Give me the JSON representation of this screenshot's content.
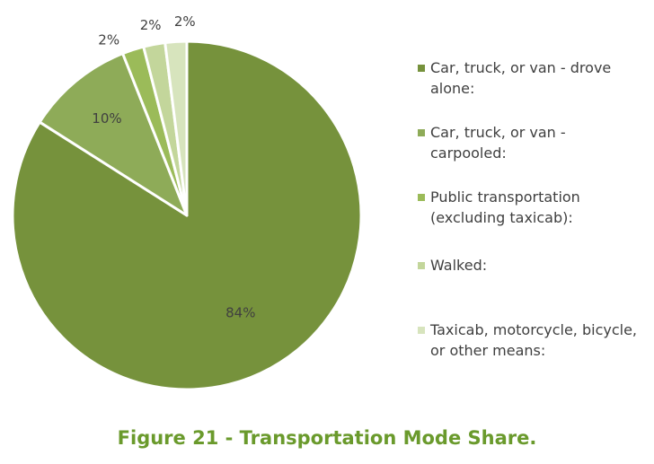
{
  "chart_data": {
    "type": "pie",
    "title": "",
    "categories": [
      "Car, truck, or van - drove alone:",
      "Car, truck, or van - carpooled:",
      "Public transportation (excluding taxicab):",
      "Walked:",
      "Taxicab, motorcycle, bicycle, or other means:"
    ],
    "values": [
      84,
      10,
      2,
      2,
      2
    ],
    "labels": [
      "84%",
      "10%",
      "2%",
      "2%",
      "2%"
    ],
    "colors": [
      "#76923c",
      "#8eab58",
      "#9bbb59",
      "#c3d69b",
      "#d7e4bd"
    ],
    "legend_position": "right"
  },
  "caption": "Figure 21 - Transportation Mode Share."
}
